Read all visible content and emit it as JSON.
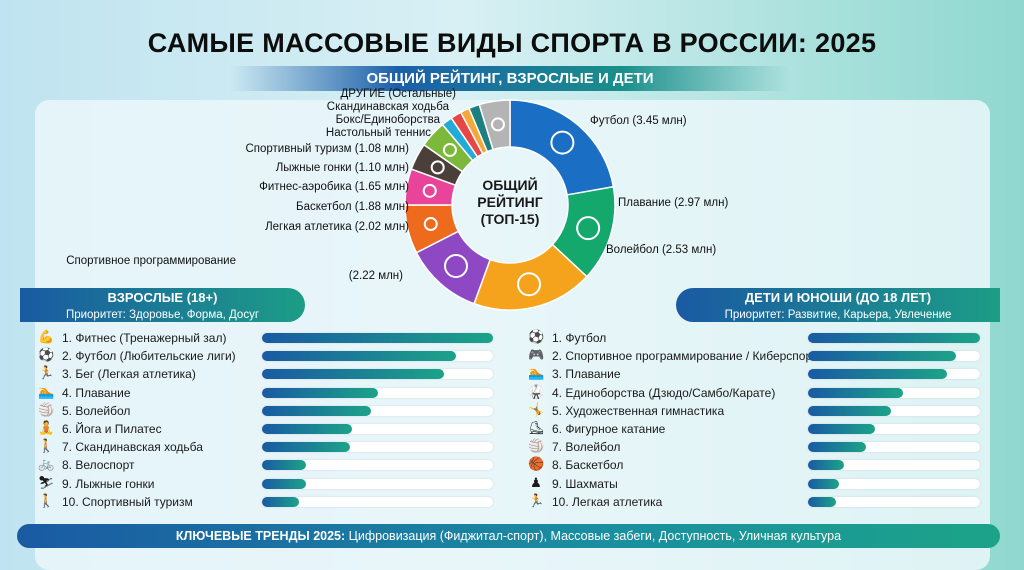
{
  "title": "САМЫЕ МАССОВЫЕ ВИДЫ СПОРТА В РОССИИ: 2025",
  "subtitle": "ОБЩИЙ РЕЙТИНГ, ВЗРОСЛЫЕ И ДЕТИ",
  "chart_data": [
    {
      "type": "pie",
      "variant": "donut",
      "title": "ОБЩИЙ РЕЙТИНГ (ТОП-15)",
      "center_lines": [
        "ОБЩИЙ",
        "РЕЙТИНГ",
        "(ТОП-15)"
      ],
      "unit": "млн",
      "slices": [
        {
          "label": "Футбол (3.45 млн)",
          "value": 3.45,
          "color": "#1a6fc4",
          "icon": "soccer-ball-icon"
        },
        {
          "label": "Плавание (2.97 млн)",
          "value": 2.97,
          "color": "#14a86c",
          "icon": "swimmer-icon"
        },
        {
          "label": "Волейбол (2.53 млн)",
          "value": 2.53,
          "color": "#f5a31c",
          "icon": "volleyball-icon"
        },
        {
          "label": "Спортивное программирование",
          "label2": "(2.22 млн)",
          "value": 2.22,
          "color": "#8e48c4",
          "icon": "keyboard-icon"
        },
        {
          "label": "Легкая атлетика (2.02 млн)",
          "value": 2.02,
          "color": "#ee6a1c",
          "icon": "runner-icon"
        },
        {
          "label": "Баскетбол (1.88 млн)",
          "value": 1.88,
          "color": "#e8449a",
          "icon": "gymnast-icon"
        },
        {
          "label": "Фитнес-аэробика (1.65 млн)",
          "value": 1.65,
          "color": "#4b4039",
          "icon": "chess-icon"
        },
        {
          "label": "Лыжные гонки (1.10 млн)",
          "value": 1.1,
          "color": "#7cb93a",
          "icon": "backpack-icon"
        },
        {
          "label": "Спортивный туризм (1.08 млн)",
          "value": 1.08,
          "color": "#22aad8",
          "icon": ""
        },
        {
          "label": "Настольный теннис",
          "value": null,
          "color": "#e84545",
          "icon": ""
        },
        {
          "label": "Бокс/Единоборства",
          "value": null,
          "color": "#f2a93a",
          "icon": ""
        },
        {
          "label": "Скандинавская ходьба",
          "value": null,
          "color": "#1d7f80",
          "icon": ""
        },
        {
          "label": "ДРУГИЕ (Остальные)",
          "value": null,
          "color": "#b4b4b4",
          "icon": "ellipsis-icon"
        }
      ]
    },
    {
      "type": "bar",
      "orientation": "horizontal",
      "title": "ВЗРОСЛЫЕ (18+)",
      "subtitle": "Приоритет: Здоровье, Форма, Досуг",
      "value_unit": "relative (fraction of leader)",
      "items": [
        {
          "label": "1. Фитнес (Тренажерный зал)",
          "value": 1.0,
          "icon": "flexed-arm-icon",
          "glyph": "💪"
        },
        {
          "label": "2. Футбол (Любительские лиги)",
          "value": 0.84,
          "icon": "soccer-ball-icon",
          "glyph": "⚽"
        },
        {
          "label": "3. Бег (Легкая атлетика)",
          "value": 0.79,
          "icon": "runner-icon",
          "glyph": "🏃"
        },
        {
          "label": "4. Плавание",
          "value": 0.5,
          "icon": "swimmer-icon",
          "glyph": "🏊"
        },
        {
          "label": "5. Волейбол",
          "value": 0.47,
          "icon": "volleyball-icon",
          "glyph": "🏐"
        },
        {
          "label": "6. Йога и Пилатес",
          "value": 0.39,
          "icon": "yoga-icon",
          "glyph": "🧘"
        },
        {
          "label": "7. Скандинавская ходьба",
          "value": 0.38,
          "icon": "hiker-icon",
          "glyph": "🚶"
        },
        {
          "label": "8. Велоспорт",
          "value": 0.19,
          "icon": "cyclist-icon",
          "glyph": "🚲"
        },
        {
          "label": "9. Лыжные гонки",
          "value": 0.19,
          "icon": "skier-icon",
          "glyph": "⛷"
        },
        {
          "label": "10. Спортивный туризм",
          "value": 0.16,
          "icon": "hiker-icon",
          "glyph": "🚶"
        }
      ]
    },
    {
      "type": "bar",
      "orientation": "horizontal",
      "title": "ДЕТИ И ЮНОШИ (ДО 18 ЛЕТ)",
      "subtitle": "Приоритет: Развитие, Карьера, Увлечение",
      "value_unit": "relative (fraction of leader)",
      "items": [
        {
          "label": "1. Футбол",
          "value": 1.0,
          "icon": "soccer-ball-icon",
          "glyph": "⚽"
        },
        {
          "label": "2. Спортивное программирование / Киберспорт",
          "value": 0.86,
          "icon": "gamepad-icon",
          "glyph": "🎮"
        },
        {
          "label": "3. Плавание",
          "value": 0.81,
          "icon": "swimmer-icon",
          "glyph": "🏊"
        },
        {
          "label": "4. Единоборства (Дзюдо/Самбо/Карате)",
          "value": 0.55,
          "icon": "martial-arts-icon",
          "glyph": "🥋"
        },
        {
          "label": "5. Художественная гимнастика",
          "value": 0.48,
          "icon": "gymnast-icon",
          "glyph": "🤸"
        },
        {
          "label": "6. Фигурное катание",
          "value": 0.39,
          "icon": "ice-skate-icon",
          "glyph": "⛸"
        },
        {
          "label": "7. Волейбол",
          "value": 0.34,
          "icon": "volleyball-icon",
          "glyph": "🏐"
        },
        {
          "label": "8. Баскетбол",
          "value": 0.21,
          "icon": "basketball-icon",
          "glyph": "🏀"
        },
        {
          "label": "9. Шахматы",
          "value": 0.18,
          "icon": "chess-icon",
          "glyph": "♟"
        },
        {
          "label": "10. Легкая атлетика",
          "value": 0.16,
          "icon": "runner-icon",
          "glyph": "🏃"
        }
      ]
    }
  ],
  "trends": {
    "label": "КЛЮЧЕВЫЕ ТРЕНДЫ 2025:",
    "text": " Цифровизация (Фиджитал-спорт), Массовые забеги, Доступность, Уличная культура"
  }
}
